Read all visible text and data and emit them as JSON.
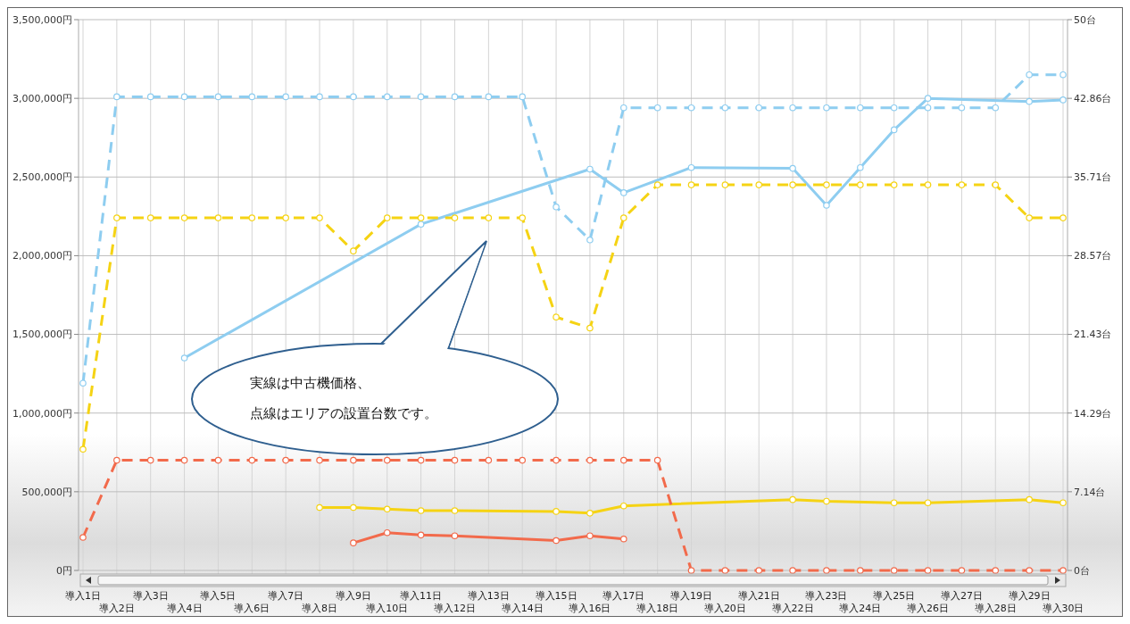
{
  "chart_data": {
    "type": "line",
    "categories": [
      "導入1日",
      "導入2日",
      "導入3日",
      "導入4日",
      "導入5日",
      "導入6日",
      "導入7日",
      "導入8日",
      "導入9日",
      "導入10日",
      "導入11日",
      "導入12日",
      "導入13日",
      "導入14日",
      "導入15日",
      "導入16日",
      "導入17日",
      "導入18日",
      "導入19日",
      "導入20日",
      "導入21日",
      "導入22日",
      "導入23日",
      "導入24日",
      "導入25日",
      "導入26日",
      "導入27日",
      "導入28日",
      "導入29日",
      "導入30日"
    ],
    "series": [
      {
        "color": "#8ecdf0",
        "line_style": "solid",
        "values": [
          null,
          null,
          null,
          1350000,
          null,
          null,
          null,
          null,
          null,
          null,
          2200000,
          null,
          null,
          null,
          null,
          2550000,
          2400000,
          null,
          2560000,
          null,
          null,
          2555000,
          2320000,
          2560000,
          2800000,
          3000000,
          null,
          null,
          2980000,
          2990000
        ]
      },
      {
        "color": "#f5d314",
        "line_style": "solid",
        "values": [
          null,
          null,
          null,
          null,
          null,
          null,
          null,
          400000,
          400000,
          390000,
          380000,
          380000,
          null,
          null,
          375000,
          364000,
          410000,
          null,
          null,
          null,
          null,
          450000,
          440000,
          null,
          430000,
          430000,
          null,
          null,
          450000,
          430000
        ]
      },
      {
        "color": "#f26a4b",
        "line_style": "solid",
        "values": [
          null,
          null,
          null,
          null,
          null,
          null,
          null,
          null,
          175000,
          240000,
          225000,
          220000,
          null,
          null,
          190000,
          220000,
          200000,
          null,
          null,
          null,
          null,
          null,
          null,
          null,
          null,
          null,
          null,
          null,
          null,
          null
        ]
      },
      {
        "color": "#8ecdf0",
        "line_style": "dashed",
        "axis": "y2",
        "values": [
          17,
          43,
          43,
          43,
          43,
          43,
          43,
          43,
          43,
          43,
          43,
          43,
          43,
          43,
          33,
          30,
          42,
          42,
          42,
          42,
          42,
          42,
          42,
          42,
          42,
          42,
          42,
          42,
          45,
          45
        ]
      },
      {
        "color": "#f5d314",
        "line_style": "dashed",
        "axis": "y2",
        "values": [
          11,
          32,
          32,
          32,
          32,
          32,
          32,
          32,
          29,
          32,
          32,
          32,
          32,
          32,
          23,
          22,
          32,
          35,
          35,
          35,
          35,
          35,
          35,
          35,
          35,
          35,
          35,
          35,
          32,
          32
        ]
      },
      {
        "color": "#f26a4b",
        "line_style": "dashed",
        "axis": "y2",
        "values": [
          3,
          10,
          10,
          10,
          10,
          10,
          10,
          10,
          10,
          10,
          10,
          10,
          10,
          10,
          10,
          10,
          10,
          10,
          0,
          0,
          0,
          0,
          0,
          0,
          0,
          0,
          0,
          0,
          0,
          0
        ]
      }
    ],
    "ylim": [
      0,
      3500000
    ],
    "yticks": [
      {
        "value": 0,
        "label": "0円"
      },
      {
        "value": 500000,
        "label": "500,000円"
      },
      {
        "value": 1000000,
        "label": "1,000,000円"
      },
      {
        "value": 1500000,
        "label": "1,500,000円"
      },
      {
        "value": 2000000,
        "label": "2,000,000円"
      },
      {
        "value": 2500000,
        "label": "2,500,000円"
      },
      {
        "value": 3000000,
        "label": "3,000,000円"
      },
      {
        "value": 3500000,
        "label": "3,500,000円"
      }
    ],
    "y2lim": [
      0,
      50
    ],
    "y2ticks": [
      {
        "value": 0,
        "label": "0台"
      },
      {
        "value": 7.142857,
        "label": "7.14台"
      },
      {
        "value": 14.285714,
        "label": "14.29台"
      },
      {
        "value": 21.428571,
        "label": "21.43台"
      },
      {
        "value": 28.571429,
        "label": "28.57台"
      },
      {
        "value": 35.714286,
        "label": "35.71台"
      },
      {
        "value": 42.857143,
        "label": "42.86台"
      },
      {
        "value": 50,
        "label": "50台"
      }
    ],
    "grid": true,
    "marker": "circle",
    "annotations": [
      "実線は中古機価格、",
      "点線はエリアの設置台数です。"
    ]
  }
}
